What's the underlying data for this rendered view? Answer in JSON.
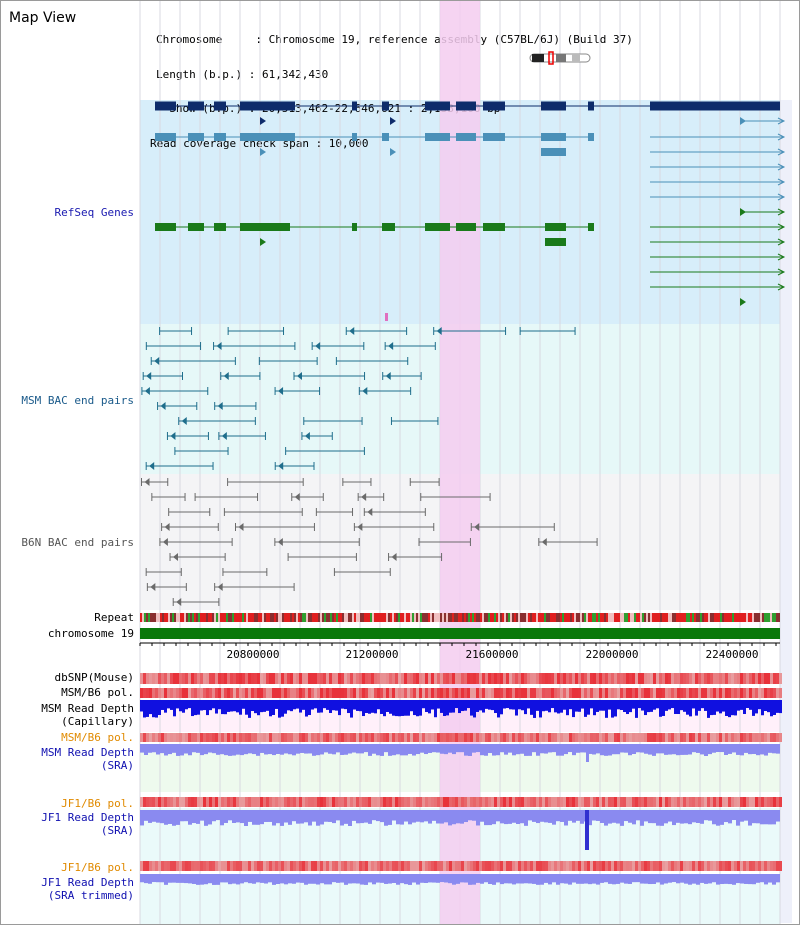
{
  "view_title": "Map View",
  "header": {
    "line1": "Chromosome     : Chromosome 19, reference assembly (C57BL/6J) (Build 37)",
    "line2": "Length (b.p.) : 61,342,430",
    "line3": "  Show (b.p.) : 20,513,462-22,646,621 : 2,133,160 bp",
    "line4": "Read coverage check span : 10,000"
  },
  "tracks": {
    "refseq": "RefSeq Genes",
    "msm_bac": "MSM BAC end pairs",
    "b6n_bac": "B6N BAC end pairs",
    "repeat": "Repeat",
    "chromosome": "chromosome 19",
    "dbsnp": "dbSNP(Mouse)",
    "msm_b6_pol_a": "MSM/B6 pol.",
    "msm_depth_cap_1": "MSM Read Depth",
    "msm_depth_cap_2": "(Capillary)",
    "msm_b6_pol_b": "MSM/B6 pol.",
    "msm_depth_sra_1": "MSM Read Depth",
    "msm_depth_sra_2": "(SRA)",
    "jf1_pol_a": "JF1/B6 pol.",
    "jf1_depth_sra_1": "JF1 Read Depth",
    "jf1_depth_sra_2": "(SRA)",
    "jf1_pol_b": "JF1/B6 pol.",
    "jf1_depth_trim_1": "JF1 Read Depth",
    "jf1_depth_trim_2": "(SRA trimmed)"
  },
  "axis": {
    "ticks": [
      "20800000",
      "21200000",
      "21600000",
      "22000000",
      "22400000"
    ]
  },
  "colors": {
    "refseq_bg": "#d7eefa",
    "msm_bac_bg": "#e6f8f8",
    "b6n_bac_bg": "#f4f4f6",
    "highlight": "#f5cdf0",
    "refseq_navy": "#0e2c6b",
    "refseq_blue": "#4a90b8",
    "refseq_green": "#1a7a1a",
    "chrom_green": "#0a780a",
    "snp_red": "#e8303a",
    "depth_blue": "#1010e0",
    "depth_light": "#8a8af0"
  },
  "icons": {
    "chromosome_ideogram": "chromosome-ideogram-icon"
  }
}
